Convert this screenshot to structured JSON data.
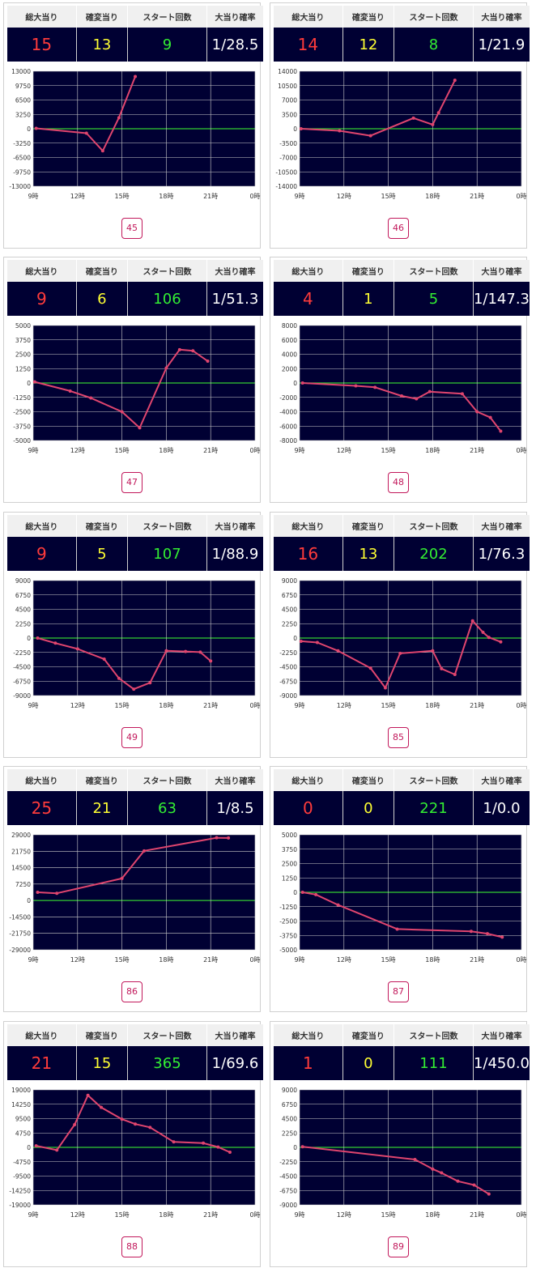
{
  "headers": [
    "総大当り",
    "確変当り",
    "スタート回数",
    "大当り確率"
  ],
  "theme": {
    "panel": "#000033",
    "grid": "#cccccc",
    "zero_line": "#33cc33",
    "series": "#e0456e",
    "total": "#ff3b3b",
    "kakuhen": "#ffff33",
    "start": "#33ee33",
    "prob": "#ffffff"
  },
  "x_ticks": [
    "9時",
    "12時",
    "15時",
    "18時",
    "21時",
    "0時"
  ],
  "machines": [
    {
      "total": "15",
      "kakuhen": "13",
      "start": "9",
      "prob": "1/28.5",
      "number": "45",
      "chart_data": {
        "type": "line",
        "x_range": [
          9,
          24
        ],
        "y_ticks": [
          "13000",
          "9750",
          "6500",
          "3250",
          "0",
          "-3250",
          "-6500",
          "-9750",
          "-13000"
        ],
        "ylim": [
          -13000,
          13000
        ],
        "points": [
          [
            9.2,
            100
          ],
          [
            12.6,
            -1000
          ],
          [
            13.7,
            -5000
          ],
          [
            14.8,
            2500
          ],
          [
            15.9,
            11800
          ]
        ]
      }
    },
    {
      "total": "14",
      "kakuhen": "12",
      "start": "8",
      "prob": "1/21.9",
      "number": "46",
      "chart_data": {
        "type": "line",
        "x_range": [
          9,
          24
        ],
        "y_ticks": [
          "14000",
          "10500",
          "7000",
          "3500",
          "0",
          "-3500",
          "-7000",
          "-10500",
          "-14000"
        ],
        "ylim": [
          -14000,
          14000
        ],
        "points": [
          [
            9.1,
            0
          ],
          [
            11.7,
            -500
          ],
          [
            13.8,
            -1700
          ],
          [
            16.7,
            2600
          ],
          [
            18.0,
            1000
          ],
          [
            18.4,
            3900
          ],
          [
            19.5,
            11800
          ]
        ]
      }
    },
    {
      "total": "9",
      "kakuhen": "6",
      "start": "106",
      "prob": "1/51.3",
      "number": "47",
      "chart_data": {
        "type": "line",
        "x_range": [
          9,
          24
        ],
        "y_ticks": [
          "5000",
          "3750",
          "2500",
          "1250",
          "0",
          "-1250",
          "-2500",
          "-3750",
          "-5000"
        ],
        "ylim": [
          -5000,
          5000
        ],
        "points": [
          [
            9.1,
            100
          ],
          [
            11.5,
            -700
          ],
          [
            12.9,
            -1300
          ],
          [
            15.0,
            -2500
          ],
          [
            16.2,
            -3900
          ],
          [
            18.0,
            1300
          ],
          [
            18.9,
            2900
          ],
          [
            19.8,
            2800
          ],
          [
            20.8,
            1900
          ]
        ]
      }
    },
    {
      "total": "4",
      "kakuhen": "1",
      "start": "5",
      "prob": "1/147.3",
      "number": "48",
      "chart_data": {
        "type": "line",
        "x_range": [
          9,
          24
        ],
        "y_ticks": [
          "8000",
          "6000",
          "4000",
          "2000",
          "0",
          "-2000",
          "-4000",
          "-6000",
          "-8000"
        ],
        "ylim": [
          -8000,
          8000
        ],
        "points": [
          [
            9.2,
            0
          ],
          [
            12.8,
            -400
          ],
          [
            14.1,
            -600
          ],
          [
            15.9,
            -1800
          ],
          [
            16.9,
            -2200
          ],
          [
            17.8,
            -1200
          ],
          [
            20.0,
            -1500
          ],
          [
            21.0,
            -4000
          ],
          [
            21.9,
            -4800
          ],
          [
            22.6,
            -6700
          ]
        ]
      }
    },
    {
      "total": "9",
      "kakuhen": "5",
      "start": "107",
      "prob": "1/88.9",
      "number": "49",
      "chart_data": {
        "type": "line",
        "x_range": [
          9,
          24
        ],
        "y_ticks": [
          "9000",
          "6750",
          "4500",
          "2250",
          "0",
          "-2250",
          "-4500",
          "-6750",
          "-9000"
        ],
        "ylim": [
          -9000,
          9000
        ],
        "points": [
          [
            9.3,
            0
          ],
          [
            10.5,
            -800
          ],
          [
            12.0,
            -1700
          ],
          [
            13.8,
            -3300
          ],
          [
            14.8,
            -6300
          ],
          [
            15.8,
            -8000
          ],
          [
            16.9,
            -7000
          ],
          [
            18.0,
            -2000
          ],
          [
            19.3,
            -2100
          ],
          [
            20.3,
            -2200
          ],
          [
            21.0,
            -3600
          ]
        ]
      }
    },
    {
      "total": "16",
      "kakuhen": "13",
      "start": "202",
      "prob": "1/76.3",
      "number": "85",
      "chart_data": {
        "type": "line",
        "x_range": [
          9,
          24
        ],
        "y_ticks": [
          "9000",
          "6750",
          "4500",
          "2250",
          "0",
          "-2250",
          "-4500",
          "-6750",
          "-9000"
        ],
        "ylim": [
          -9000,
          9000
        ],
        "points": [
          [
            9.1,
            -500
          ],
          [
            10.2,
            -700
          ],
          [
            11.6,
            -2000
          ],
          [
            13.8,
            -4700
          ],
          [
            14.8,
            -7800
          ],
          [
            15.8,
            -2400
          ],
          [
            18.0,
            -2000
          ],
          [
            18.6,
            -4800
          ],
          [
            19.5,
            -5700
          ],
          [
            20.7,
            2700
          ],
          [
            21.4,
            900
          ],
          [
            21.8,
            100
          ],
          [
            22.6,
            -600
          ]
        ]
      }
    },
    {
      "total": "25",
      "kakuhen": "21",
      "start": "63",
      "prob": "1/8.5",
      "number": "86",
      "chart_data": {
        "type": "line",
        "x_range": [
          9,
          24
        ],
        "y_ticks": [
          "29000",
          "21750",
          "14500",
          "7250",
          "0",
          "-14500",
          "-21750",
          "-29000"
        ],
        "ylim": [
          -29000,
          29000
        ],
        "points": [
          [
            9.3,
            0
          ],
          [
            10.6,
            -500
          ],
          [
            15.0,
            7000
          ],
          [
            16.5,
            20900
          ],
          [
            21.4,
            27500
          ],
          [
            22.2,
            27400
          ]
        ]
      }
    },
    {
      "total": "0",
      "kakuhen": "0",
      "start": "221",
      "prob": "1/0.0",
      "number": "87",
      "chart_data": {
        "type": "line",
        "x_range": [
          9,
          24
        ],
        "y_ticks": [
          "5000",
          "3750",
          "2500",
          "1250",
          "0",
          "-1250",
          "-2500",
          "-3750",
          "-5000"
        ],
        "ylim": [
          -5000,
          5000
        ],
        "points": [
          [
            9.2,
            0
          ],
          [
            10.1,
            -200
          ],
          [
            11.6,
            -1100
          ],
          [
            15.6,
            -3200
          ],
          [
            20.6,
            -3400
          ],
          [
            21.7,
            -3600
          ],
          [
            22.7,
            -3900
          ]
        ]
      }
    },
    {
      "total": "21",
      "kakuhen": "15",
      "start": "365",
      "prob": "1/69.6",
      "number": "88",
      "chart_data": {
        "type": "line",
        "x_range": [
          9,
          24
        ],
        "y_ticks": [
          "19000",
          "14250",
          "9500",
          "4750",
          "0",
          "-4750",
          "-9500",
          "-14250",
          "-19000"
        ],
        "ylim": [
          -19000,
          19000
        ],
        "points": [
          [
            9.2,
            500
          ],
          [
            10.6,
            -900
          ],
          [
            11.8,
            7500
          ],
          [
            12.7,
            17200
          ],
          [
            13.6,
            13200
          ],
          [
            15.0,
            9300
          ],
          [
            15.9,
            7700
          ],
          [
            16.9,
            6600
          ],
          [
            18.5,
            1800
          ],
          [
            20.5,
            1400
          ],
          [
            21.5,
            100
          ],
          [
            22.3,
            -1600
          ]
        ]
      }
    },
    {
      "total": "1",
      "kakuhen": "0",
      "start": "111",
      "prob": "1/450.0",
      "number": "89",
      "chart_data": {
        "type": "line",
        "x_range": [
          9,
          24
        ],
        "y_ticks": [
          "9000",
          "6750",
          "4500",
          "2250",
          "0",
          "-2250",
          "-4500",
          "-6750",
          "-9000"
        ],
        "ylim": [
          -9000,
          9000
        ],
        "points": [
          [
            9.2,
            100
          ],
          [
            16.8,
            -1900
          ],
          [
            18.0,
            -3400
          ],
          [
            18.6,
            -4000
          ],
          [
            19.7,
            -5300
          ],
          [
            20.8,
            -5900
          ],
          [
            21.8,
            -7300
          ]
        ]
      }
    }
  ]
}
